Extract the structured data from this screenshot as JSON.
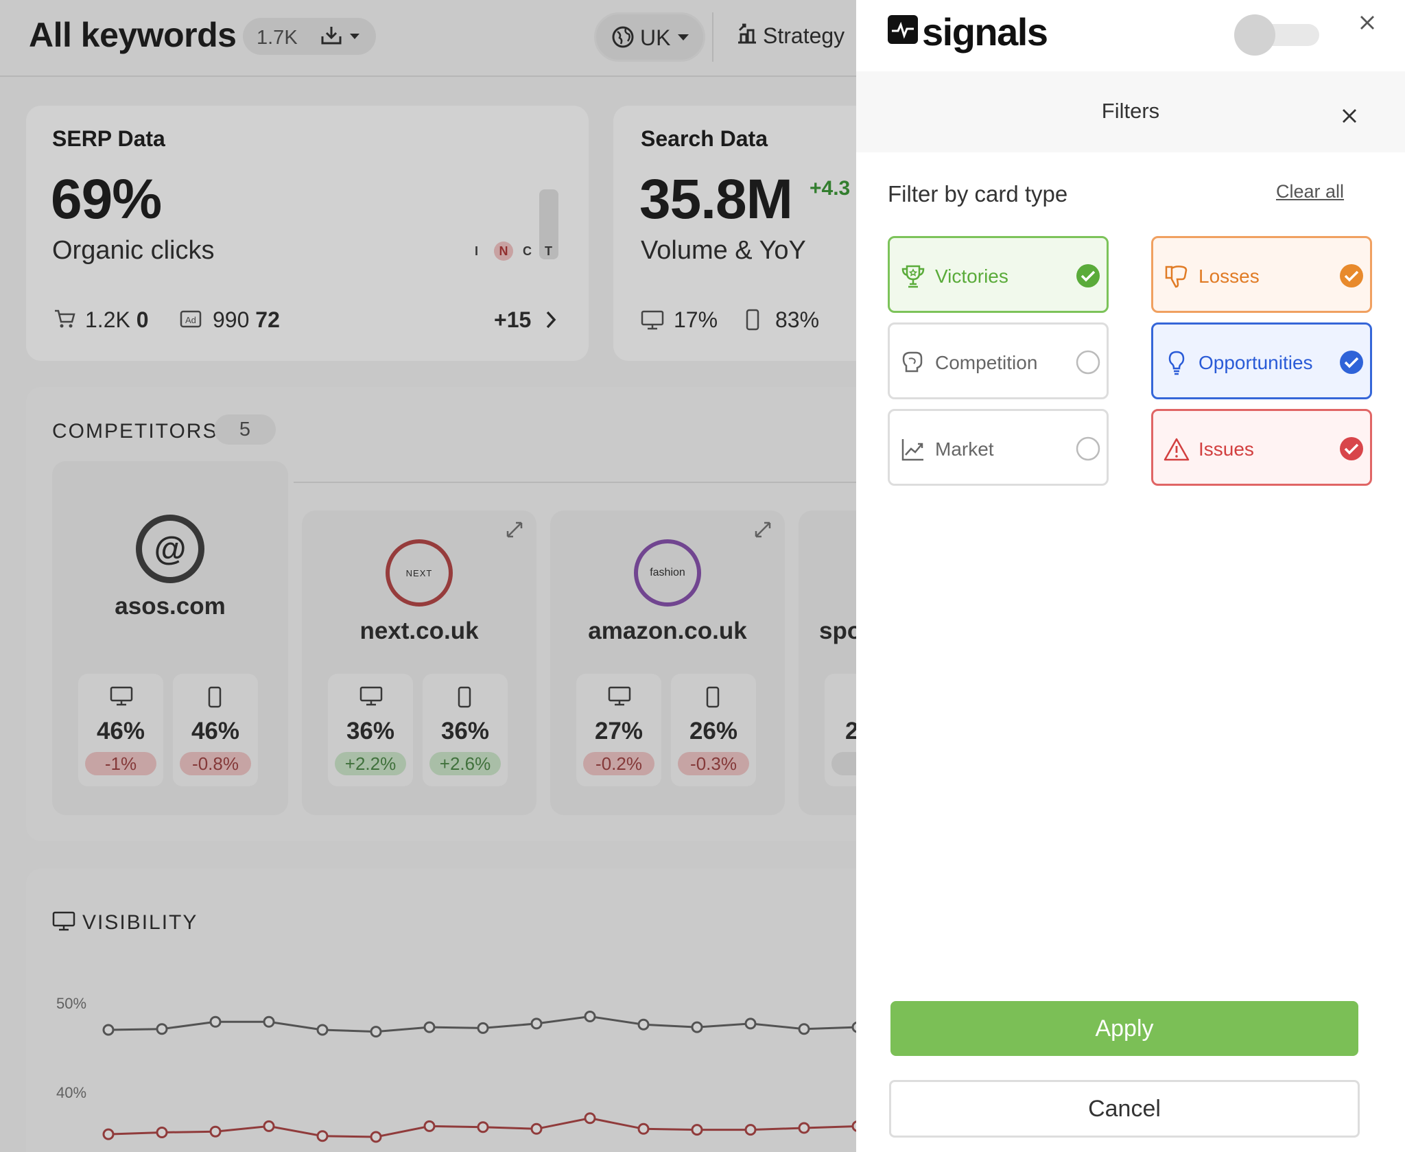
{
  "header": {
    "title": "All keywords",
    "keyword_count": "1.7K",
    "country": "UK",
    "strategy_label": "Strategy",
    "icons": [
      "download-icon",
      "globe-icon",
      "strategy-icon"
    ]
  },
  "serp_card": {
    "title": "SERP Data",
    "value": "69%",
    "label": "Organic clicks",
    "intent_letters": [
      "I",
      "N",
      "C",
      "T"
    ],
    "shopping_value": "1.2K",
    "shopping_bold": "0",
    "ads_value": "990",
    "ads_bold": "72",
    "more": "+15"
  },
  "search_card": {
    "title": "Search Data",
    "value": "35.8M",
    "change": "+4.3",
    "label": "Volume & YoY",
    "desktop": "17%",
    "mobile": "83%"
  },
  "competitors": {
    "label": "COMPETITORS",
    "count": "5",
    "items": [
      {
        "name": "asos.com",
        "logo_text": "@",
        "desktop": "46%",
        "desktop_delta": "-1%",
        "mobile": "46%",
        "mobile_delta": "-0.8%",
        "ring": "#444444"
      },
      {
        "name": "next.co.uk",
        "logo_text": "NEXT",
        "desktop": "36%",
        "desktop_delta": "+2.2%",
        "mobile": "36%",
        "mobile_delta": "+2.6%",
        "ring": "#b84a4a"
      },
      {
        "name": "amazon.co.uk",
        "logo_text": "fashion",
        "desktop": "27%",
        "desktop_delta": "-0.2%",
        "mobile": "26%",
        "mobile_delta": "-0.3%",
        "ring": "#8a55b0"
      },
      {
        "name": "spo",
        "logo_text": "",
        "desktop": "2",
        "desktop_delta": "",
        "mobile": "",
        "mobile_delta": "",
        "ring": "#cccccc"
      }
    ]
  },
  "visibility": {
    "label": "VISIBILITY",
    "y_ticks": [
      "50%",
      "40%"
    ]
  },
  "chart_data": {
    "type": "line",
    "title": "",
    "ylabel": "",
    "xlabel": "",
    "ylim": [
      38,
      52
    ],
    "grid": false,
    "series": [
      {
        "color": "#666666",
        "values": [
          47.0,
          47.1,
          47.9,
          47.9,
          47.0,
          46.8,
          47.3,
          47.2,
          47.7,
          48.5,
          47.6,
          47.3,
          47.7,
          47.1,
          47.3
        ]
      },
      {
        "color": "#b04848",
        "values": [
          35.3,
          35.5,
          35.6,
          36.2,
          35.1,
          35.0,
          36.2,
          36.1,
          35.9,
          37.1,
          35.9,
          35.8,
          35.8,
          36.0,
          36.2
        ]
      }
    ]
  },
  "panel": {
    "brand": "signals",
    "filters_title": "Filters",
    "filter_by_label": "Filter by card type",
    "clear_all": "Clear all",
    "tiles": [
      {
        "label": "Victories",
        "icon": "trophy-icon",
        "checked": true,
        "color": "#5aab3a",
        "bg": "#f1f9ec",
        "border": "#7cc35a"
      },
      {
        "label": "Losses",
        "icon": "thumbs-down-icon",
        "checked": true,
        "color": "#e07b25",
        "bg": "#fff5ee",
        "border": "#f0a060"
      },
      {
        "label": "Competition",
        "icon": "boxing-glove-icon",
        "checked": false,
        "color": "#666666",
        "bg": "#ffffff",
        "border": "#dddddd"
      },
      {
        "label": "Opportunities",
        "icon": "lightbulb-icon",
        "checked": true,
        "color": "#2a5bd7",
        "bg": "#eef3ff",
        "border": "#3566d8"
      },
      {
        "label": "Market",
        "icon": "trend-icon",
        "checked": false,
        "color": "#666666",
        "bg": "#ffffff",
        "border": "#dddddd"
      },
      {
        "label": "Issues",
        "icon": "warning-icon",
        "checked": true,
        "color": "#d23f3f",
        "bg": "#fff3f3",
        "border": "#e06565"
      }
    ],
    "apply": "Apply",
    "cancel": "Cancel"
  }
}
